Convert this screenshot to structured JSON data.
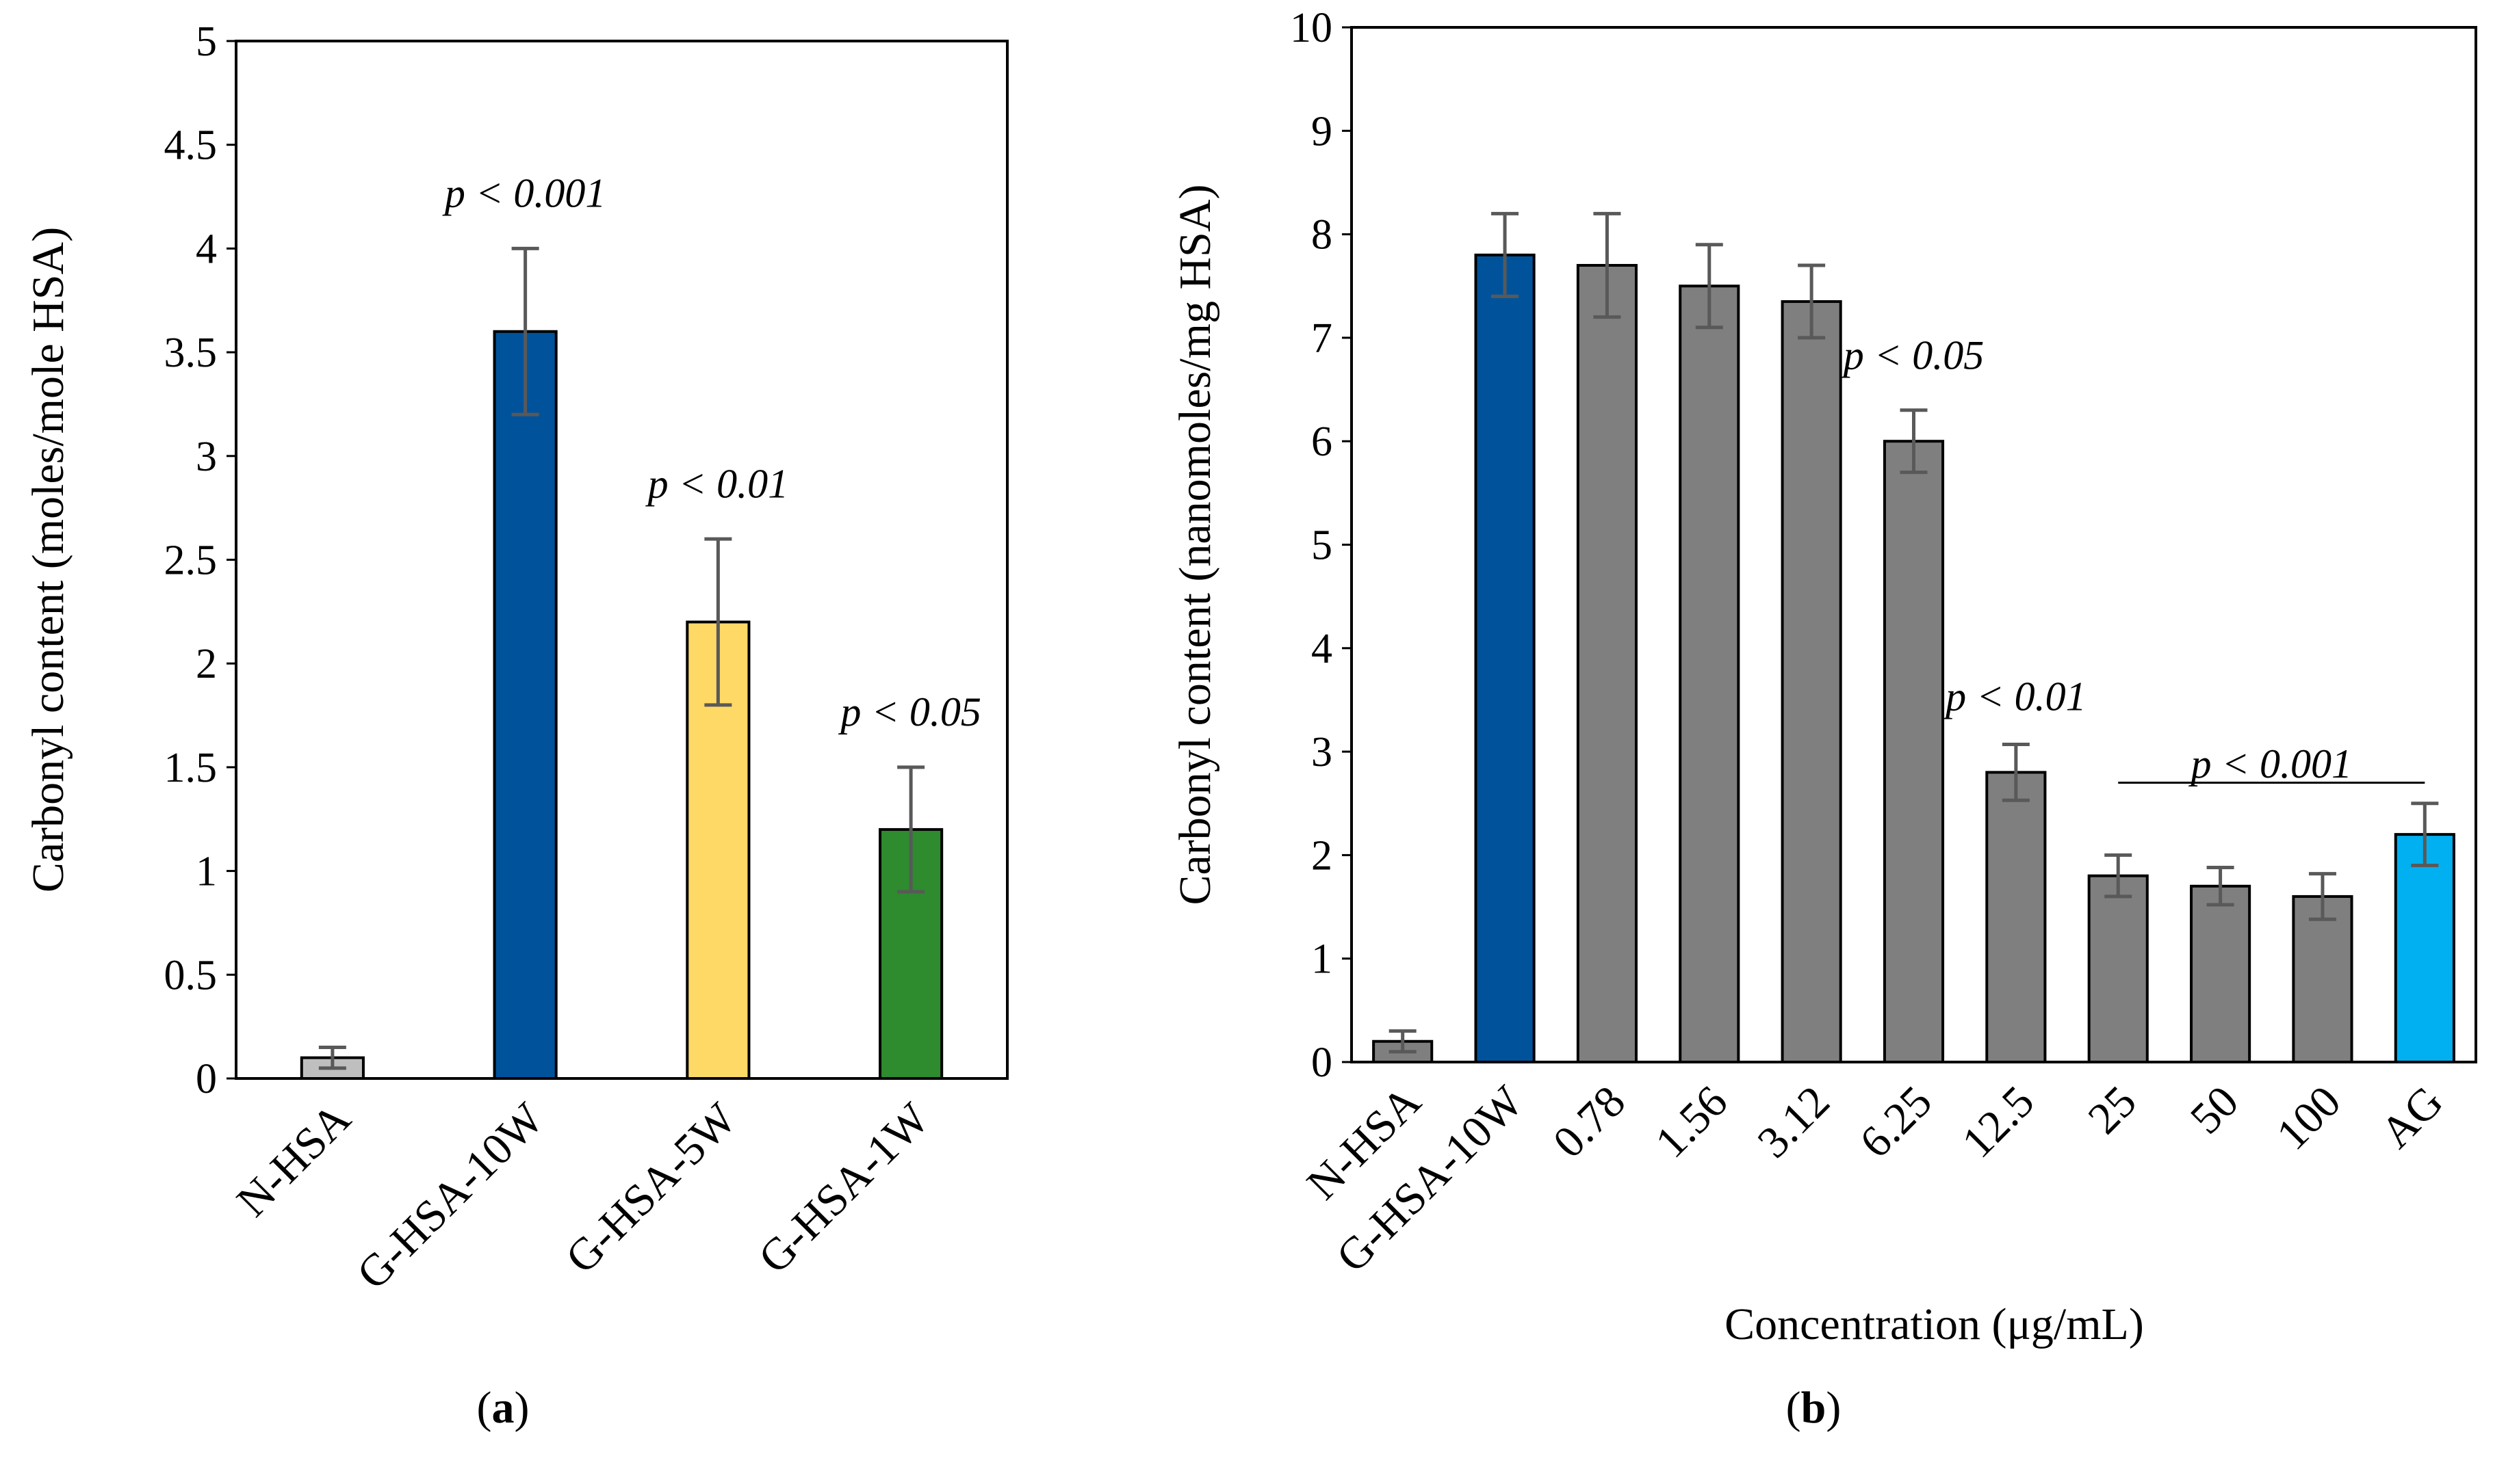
{
  "chart_data": [
    {
      "type": "bar",
      "panel_label": "a",
      "categories": [
        "N-HSA",
        "G-HSA-10W",
        "G-HSA-5W",
        "G-HSA-1W"
      ],
      "values": [
        0.1,
        3.6,
        2.2,
        1.2
      ],
      "errors": [
        0.05,
        0.4,
        0.4,
        0.3
      ],
      "colors": [
        "#bfbfbf",
        "#00539b",
        "#ffd966",
        "#2e8b2e"
      ],
      "xlabel": "",
      "ylabel": "Carbonyl content (moles/mole HSA)",
      "ylim": [
        0,
        5
      ],
      "yticks": [
        "0",
        "0.5",
        "1",
        "1.5",
        "2",
        "2.5",
        "3",
        "3.5",
        "4",
        "4.5",
        "5"
      ],
      "grid": false,
      "annotations": [
        {
          "text": "p < 0.001",
          "category_index": 1,
          "y": 4.2
        },
        {
          "text": "p < 0.01",
          "category_index": 2,
          "y": 2.8
        },
        {
          "text": "p < 0.05",
          "category_index": 3,
          "y": 1.7
        }
      ]
    },
    {
      "type": "bar",
      "panel_label": "b",
      "categories": [
        "N-HSA",
        "G-HSA-10W",
        "0.78",
        "1.56",
        "3.12",
        "6.25",
        "12.5",
        "25",
        "50",
        "100",
        "AG"
      ],
      "values": [
        0.2,
        7.8,
        7.7,
        7.5,
        7.35,
        6.0,
        2.8,
        1.8,
        1.7,
        1.6,
        2.2
      ],
      "errors": [
        0.1,
        0.4,
        0.5,
        0.4,
        0.35,
        0.3,
        0.27,
        0.2,
        0.18,
        0.22,
        0.3
      ],
      "colors": [
        "#7f7f7f",
        "#00539b",
        "#7f7f7f",
        "#7f7f7f",
        "#7f7f7f",
        "#7f7f7f",
        "#7f7f7f",
        "#7f7f7f",
        "#7f7f7f",
        "#7f7f7f",
        "#00b0f0"
      ],
      "xlabel": "Concentration (μg/mL)",
      "ylabel": "Carbonyl content (nanomoles/mg HSA)",
      "ylim": [
        0,
        10
      ],
      "yticks": [
        "0",
        "1",
        "2",
        "3",
        "4",
        "5",
        "6",
        "7",
        "8",
        "9",
        "10"
      ],
      "grid": false,
      "annotations": [
        {
          "text": "p < 0.05",
          "category_index": 5,
          "y": 6.7
        },
        {
          "text": "p < 0.01",
          "category_index": 6,
          "y": 3.4
        },
        {
          "text": "p < 0.001",
          "category_start": 7,
          "category_end": 10,
          "y": 2.75,
          "bracket_y": 2.7
        }
      ]
    }
  ]
}
